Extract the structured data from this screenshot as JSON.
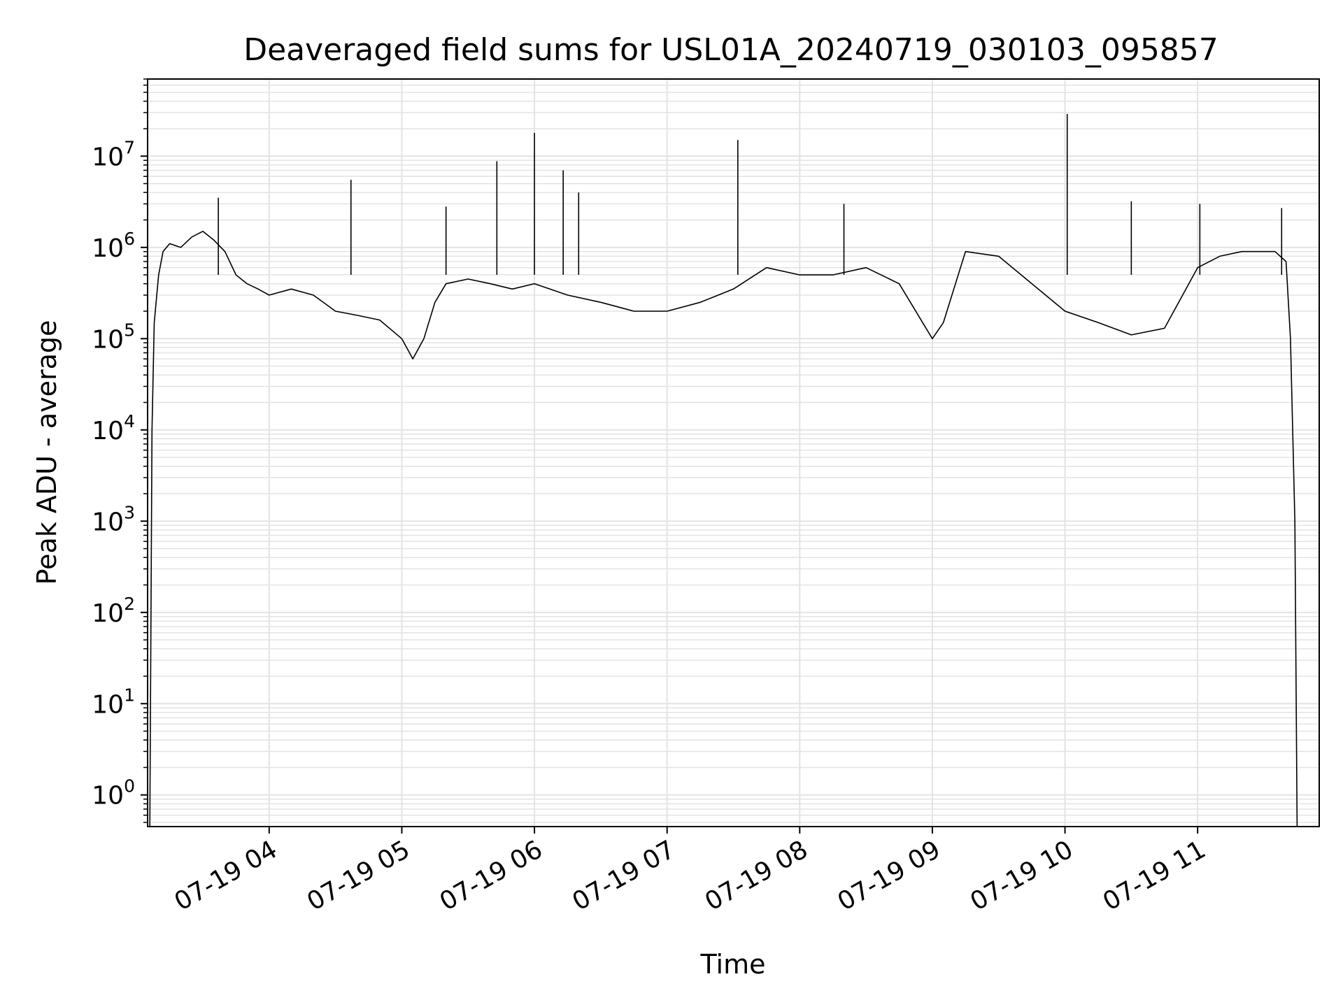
{
  "chart_data": {
    "type": "line",
    "title": "Deaveraged field sums for USL01A_20240719_030103_095857",
    "xlabel": "Time",
    "ylabel": "Peak ADU - average",
    "y_scale": "log",
    "ylim": [
      0.45,
      70000000
    ],
    "xlim": [
      "2024-07-19 03:05",
      "2024-07-19 11:55"
    ],
    "grid": true,
    "grid_minor": true,
    "line_color": "#000000",
    "grid_color": "#e3e3e3",
    "x_ticks": [
      {
        "value": "2024-07-19 04:00",
        "label": "07-19 04"
      },
      {
        "value": "2024-07-19 05:00",
        "label": "07-19 05"
      },
      {
        "value": "2024-07-19 06:00",
        "label": "07-19 06"
      },
      {
        "value": "2024-07-19 07:00",
        "label": "07-19 07"
      },
      {
        "value": "2024-07-19 08:00",
        "label": "07-19 08"
      },
      {
        "value": "2024-07-19 09:00",
        "label": "07-19 09"
      },
      {
        "value": "2024-07-19 10:00",
        "label": "07-19 10"
      },
      {
        "value": "2024-07-19 11:00",
        "label": "07-19 11"
      }
    ],
    "y_ticks": [
      {
        "value": 1,
        "base": "10",
        "exp": "0"
      },
      {
        "value": 10,
        "base": "10",
        "exp": "1"
      },
      {
        "value": 100,
        "base": "10",
        "exp": "2"
      },
      {
        "value": 1000,
        "base": "10",
        "exp": "3"
      },
      {
        "value": 10000,
        "base": "10",
        "exp": "4"
      },
      {
        "value": 100000,
        "base": "10",
        "exp": "5"
      },
      {
        "value": 1000000,
        "base": "10",
        "exp": "6"
      },
      {
        "value": 10000000,
        "base": "10",
        "exp": "7"
      }
    ],
    "series": [
      {
        "x": [
          "2024-07-19 03:06",
          "2024-07-19 03:07",
          "2024-07-19 03:08",
          "2024-07-19 03:10",
          "2024-07-19 03:12",
          "2024-07-19 03:15",
          "2024-07-19 03:20",
          "2024-07-19 03:25",
          "2024-07-19 03:30",
          "2024-07-19 03:35",
          "2024-07-19 03:40",
          "2024-07-19 03:45",
          "2024-07-19 03:50",
          "2024-07-19 03:55",
          "2024-07-19 04:00",
          "2024-07-19 04:10",
          "2024-07-19 04:20",
          "2024-07-19 04:30",
          "2024-07-19 04:40",
          "2024-07-19 04:50",
          "2024-07-19 05:00",
          "2024-07-19 05:05",
          "2024-07-19 05:10",
          "2024-07-19 05:15",
          "2024-07-19 05:20",
          "2024-07-19 05:30",
          "2024-07-19 05:40",
          "2024-07-19 05:50",
          "2024-07-19 06:00",
          "2024-07-19 06:15",
          "2024-07-19 06:30",
          "2024-07-19 06:45",
          "2024-07-19 07:00",
          "2024-07-19 07:15",
          "2024-07-19 07:30",
          "2024-07-19 07:45",
          "2024-07-19 08:00",
          "2024-07-19 08:15",
          "2024-07-19 08:30",
          "2024-07-19 08:45",
          "2024-07-19 09:00",
          "2024-07-19 09:05",
          "2024-07-19 09:15",
          "2024-07-19 09:30",
          "2024-07-19 09:45",
          "2024-07-19 10:00",
          "2024-07-19 10:15",
          "2024-07-19 10:30",
          "2024-07-19 10:45",
          "2024-07-19 11:00",
          "2024-07-19 11:10",
          "2024-07-19 11:20",
          "2024-07-19 11:30",
          "2024-07-19 11:35",
          "2024-07-19 11:40",
          "2024-07-19 11:42",
          "2024-07-19 11:44",
          "2024-07-19 11:45"
        ],
        "values": [
          0.45,
          10000,
          150000,
          500000,
          900000,
          1100000,
          1000000,
          1300000,
          1500000,
          1200000,
          900000,
          500000,
          400000,
          350000,
          300000,
          350000,
          300000,
          200000,
          180000,
          160000,
          100000,
          60000,
          100000,
          250000,
          400000,
          450000,
          400000,
          350000,
          400000,
          300000,
          250000,
          200000,
          200000,
          250000,
          350000,
          600000,
          500000,
          500000,
          600000,
          400000,
          100000,
          150000,
          900000,
          800000,
          400000,
          200000,
          150000,
          110000,
          130000,
          600000,
          800000,
          900000,
          900000,
          900000,
          700000,
          100000,
          1000,
          0.45
        ]
      }
    ],
    "spikes": [
      {
        "x": "2024-07-19 03:37",
        "y": 3500000
      },
      {
        "x": "2024-07-19 04:37",
        "y": 5500000
      },
      {
        "x": "2024-07-19 05:20",
        "y": 2800000
      },
      {
        "x": "2024-07-19 05:43",
        "y": 8800000
      },
      {
        "x": "2024-07-19 06:00",
        "y": 18000000
      },
      {
        "x": "2024-07-19 06:13",
        "y": 7000000
      },
      {
        "x": "2024-07-19 06:20",
        "y": 4000000
      },
      {
        "x": "2024-07-19 07:32",
        "y": 15000000
      },
      {
        "x": "2024-07-19 08:20",
        "y": 3000000
      },
      {
        "x": "2024-07-19 10:01",
        "y": 29000000
      },
      {
        "x": "2024-07-19 10:30",
        "y": 3200000
      },
      {
        "x": "2024-07-19 11:01",
        "y": 3000000
      },
      {
        "x": "2024-07-19 11:38",
        "y": 2700000
      }
    ]
  }
}
